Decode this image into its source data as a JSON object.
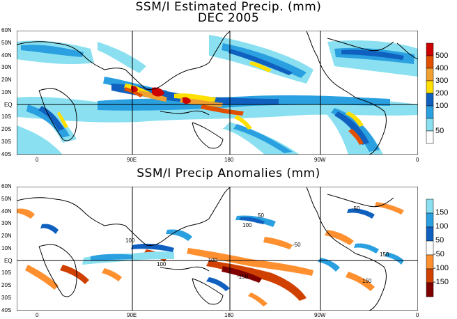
{
  "top_panel": {
    "title_line1": "SSM/I Estimated Precip. (mm)",
    "title_line2": "DEC 2005",
    "lat_ticks": [
      "60N",
      "50N",
      "40N",
      "30N",
      "20N",
      "10N",
      "EQ",
      "10S",
      "20S",
      "30S",
      "40S"
    ],
    "lon_ticks": [
      "0",
      "90E",
      "180",
      "90W",
      "0"
    ],
    "colorbar": {
      "labels": [
        "500",
        "400",
        "300",
        "200",
        "100",
        "50"
      ],
      "colors": [
        "#cc0000",
        "#e05000",
        "#f0a030",
        "#ffe000",
        "#1060c0",
        "#2aa0e0",
        "#8ae0f0",
        "#ffffff"
      ]
    }
  },
  "bottom_panel": {
    "title": "SSM/I Precip Anomalies (mm)",
    "lat_ticks": [
      "60N",
      "50N",
      "40N",
      "30N",
      "20N",
      "10N",
      "EQ",
      "10S",
      "20S",
      "30S",
      "40S"
    ],
    "lon_ticks": [
      "0",
      "90E",
      "180",
      "90W",
      "0"
    ],
    "colorbar": {
      "labels": [
        "150",
        "100",
        "50",
        "-50",
        "-100",
        "-150"
      ],
      "colors": [
        "#8ae0f0",
        "#2aa0e0",
        "#1060c0",
        "#ffffff",
        "#ff9030",
        "#d04000",
        "#800000"
      ]
    },
    "contour_labels": [
      "-50",
      "-100",
      "-150",
      "50",
      "100",
      "150"
    ]
  }
}
